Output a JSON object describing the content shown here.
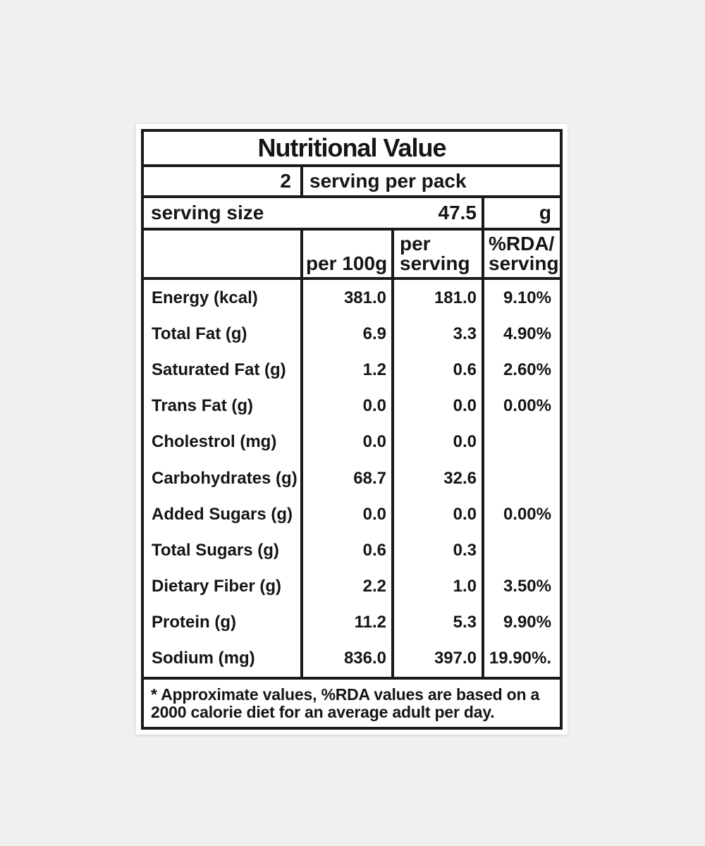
{
  "title": "Nutritional Value",
  "servings": {
    "count": "2",
    "text": "serving per pack"
  },
  "serving_size": {
    "label": "serving size",
    "value": "47.5",
    "unit": "g"
  },
  "column_headers": {
    "per_100g": "per 100g",
    "per_serving": [
      "per",
      "serving"
    ],
    "rda_per_serving": [
      "%RDA/",
      "serving"
    ]
  },
  "nutrients": [
    {
      "name": "Energy (kcal)",
      "per_100g": "381.0",
      "per_serving": "181.0",
      "rda": "9.10%"
    },
    {
      "name": "Total Fat (g)",
      "per_100g": "6.9",
      "per_serving": "3.3",
      "rda": "4.90%"
    },
    {
      "name": "Saturated Fat (g)",
      "per_100g": "1.2",
      "per_serving": "0.6",
      "rda": "2.60%"
    },
    {
      "name": "Trans Fat (g)",
      "per_100g": "0.0",
      "per_serving": "0.0",
      "rda": "0.00%"
    },
    {
      "name": "Cholestrol (mg)",
      "per_100g": "0.0",
      "per_serving": "0.0",
      "rda": ""
    },
    {
      "name": "Carbohydrates (g)",
      "per_100g": "68.7",
      "per_serving": "32.6",
      "rda": ""
    },
    {
      "name": "Added Sugars (g)",
      "per_100g": "0.0",
      "per_serving": "0.0",
      "rda": "0.00%"
    },
    {
      "name": "Total Sugars (g)",
      "per_100g": "0.6",
      "per_serving": "0.3",
      "rda": ""
    },
    {
      "name": "Dietary Fiber (g)",
      "per_100g": "2.2",
      "per_serving": "1.0",
      "rda": "3.50%"
    },
    {
      "name": "Protein (g)",
      "per_100g": "11.2",
      "per_serving": "5.3",
      "rda": "9.90%"
    },
    {
      "name": "Sodium (mg)",
      "per_100g": "836.0",
      "per_serving": "397.0",
      "rda": "19.90%."
    }
  ],
  "footnote": [
    "* Approximate values, %RDA values are based on a",
    "2000 calorie diet for an average adult per day."
  ],
  "colors": {
    "background": "#f0f0f1",
    "card": "#ffffff",
    "border": "#1a1a1a",
    "text": "#151515"
  }
}
